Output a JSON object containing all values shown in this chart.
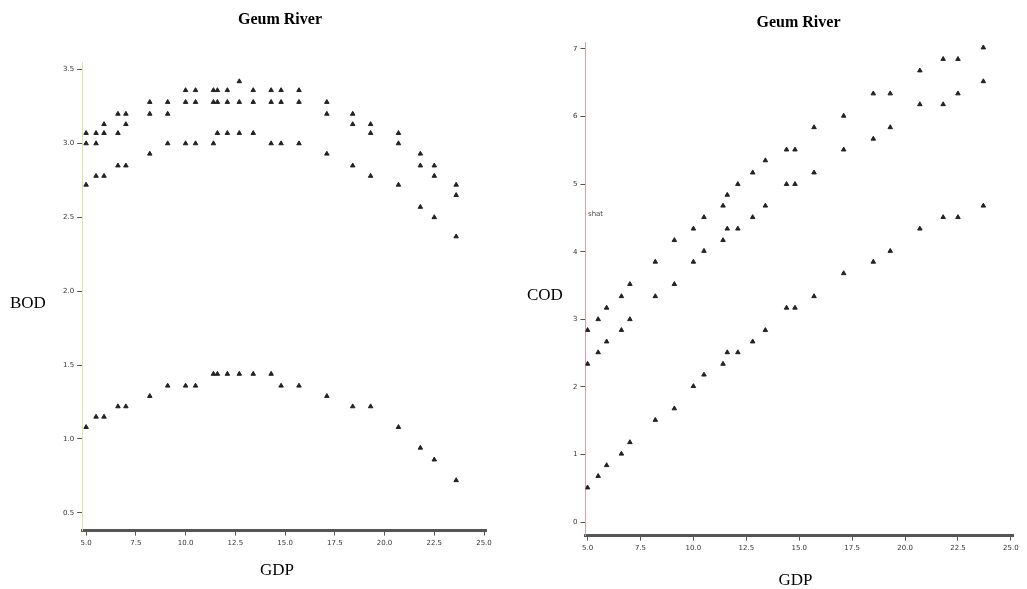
{
  "chart_data": [
    {
      "type": "scatter",
      "title": "Geum River",
      "xlabel": "GDP",
      "ylabel": "BOD",
      "marker": "triangle",
      "grid": false,
      "legend": false,
      "xlim": [
        4.8,
        25.1
      ],
      "ylim": [
        0.38,
        3.55
      ],
      "xticks": [
        {
          "value": 5,
          "label": "5.0"
        },
        {
          "value": 7.5,
          "label": "7.5"
        },
        {
          "value": 10,
          "label": "10.0"
        },
        {
          "value": 12.5,
          "label": "12.5"
        },
        {
          "value": 15,
          "label": "15.0"
        },
        {
          "value": 17.5,
          "label": "17.5"
        },
        {
          "value": 20,
          "label": "20.0"
        },
        {
          "value": 22.5,
          "label": "22.5"
        },
        {
          "value": 25,
          "label": "25.0"
        }
      ],
      "yticks": [
        {
          "value": 0.5,
          "label": "0.5"
        },
        {
          "value": 1,
          "label": "1.0"
        },
        {
          "value": 1.5,
          "label": "1.5"
        },
        {
          "value": 2,
          "label": "2.0"
        },
        {
          "value": 2.5,
          "label": "2.5"
        },
        {
          "value": 3,
          "label": "3.0"
        },
        {
          "value": 3.5,
          "label": "3.5"
        }
      ],
      "series": [
        {
          "color": "#222222",
          "x": [
            5.0,
            5.0,
            5.0,
            5.5,
            5.5,
            5.5,
            5.9,
            5.9,
            5.9,
            6.6,
            6.6,
            6.6,
            7.0,
            7.0,
            7.0,
            8.2,
            8.2,
            8.2,
            9.1,
            9.1,
            9.1,
            10.0,
            10.0,
            10.0,
            10.5,
            10.5,
            10.5,
            11.4,
            11.4,
            11.4,
            11.6,
            11.6,
            11.6,
            12.1,
            12.1,
            12.1,
            12.7,
            12.7,
            12.7,
            13.4,
            13.4,
            13.4,
            14.3,
            14.3,
            14.3,
            14.8,
            14.8,
            14.8,
            15.7,
            15.7,
            15.7,
            17.1,
            17.1,
            17.1,
            18.4,
            18.4,
            18.4,
            19.3,
            19.3,
            19.3,
            20.7,
            20.7,
            20.7,
            21.8,
            21.8,
            21.8,
            22.5,
            22.5,
            22.5,
            23.6,
            23.6,
            23.6,
            5.0,
            5.5,
            5.9,
            6.6,
            7.0,
            8.2,
            9.1,
            10.0,
            10.5,
            11.4,
            11.6,
            12.1,
            12.7,
            13.4,
            14.3,
            14.8,
            15.7,
            17.1,
            18.4,
            19.3,
            20.7,
            21.8,
            22.5,
            23.6
          ],
          "values": [
            3.07,
            3.0,
            2.72,
            3.07,
            3.0,
            2.78,
            3.13,
            3.07,
            2.78,
            3.2,
            3.07,
            2.85,
            3.2,
            3.13,
            2.85,
            3.28,
            3.2,
            2.93,
            3.28,
            3.2,
            3.0,
            3.36,
            3.28,
            3.0,
            3.36,
            3.28,
            3.0,
            3.36,
            3.28,
            3.0,
            3.36,
            3.28,
            3.07,
            3.36,
            3.28,
            3.07,
            3.42,
            3.28,
            3.07,
            3.36,
            3.28,
            3.07,
            3.36,
            3.28,
            3.0,
            3.36,
            3.28,
            3.0,
            3.36,
            3.28,
            3.0,
            3.28,
            3.2,
            2.93,
            3.2,
            3.13,
            2.85,
            3.13,
            3.07,
            2.78,
            3.07,
            3.0,
            2.72,
            2.93,
            2.85,
            2.57,
            2.85,
            2.78,
            2.5,
            2.72,
            2.65,
            2.37,
            1.08,
            1.15,
            1.15,
            1.22,
            1.22,
            1.29,
            1.36,
            1.36,
            1.36,
            1.44,
            1.44,
            1.44,
            1.44,
            1.44,
            1.44,
            1.36,
            1.36,
            1.29,
            1.22,
            1.22,
            1.08,
            0.94,
            0.86,
            0.72
          ]
        }
      ]
    },
    {
      "type": "scatter",
      "title": "Geum River",
      "xlabel": "GDP",
      "ylabel": "COD",
      "marker": "triangle",
      "grid": false,
      "legend": false,
      "annotations": [
        "shat"
      ],
      "xlim": [
        4.9,
        25.1
      ],
      "ylim": [
        -0.2,
        7.1
      ],
      "xticks": [
        {
          "value": 5,
          "label": "5.0"
        },
        {
          "value": 7.5,
          "label": "7.5"
        },
        {
          "value": 10,
          "label": "10.0"
        },
        {
          "value": 12.5,
          "label": "12.5"
        },
        {
          "value": 15,
          "label": "15.0"
        },
        {
          "value": 17.5,
          "label": "17.5"
        },
        {
          "value": 20,
          "label": "20.0"
        },
        {
          "value": 22.5,
          "label": "22.5"
        },
        {
          "value": 25,
          "label": "25.0"
        }
      ],
      "yticks": [
        0,
        1,
        2,
        3,
        4,
        5,
        6,
        7
      ],
      "series": [
        {
          "color": "#222222",
          "x": [
            5.0,
            5.0,
            5.0,
            5.5,
            5.5,
            5.5,
            5.9,
            5.9,
            5.9,
            6.6,
            6.6,
            6.6,
            7.0,
            7.0,
            7.0,
            8.2,
            8.2,
            8.2,
            9.1,
            9.1,
            9.1,
            10.0,
            10.0,
            10.0,
            10.5,
            10.5,
            10.5,
            11.4,
            11.4,
            11.4,
            11.6,
            11.6,
            11.6,
            12.1,
            12.1,
            12.1,
            12.8,
            12.8,
            12.8,
            13.4,
            13.4,
            13.4,
            14.4,
            14.4,
            14.4,
            14.8,
            14.8,
            14.8,
            15.7,
            15.7,
            15.7,
            17.1,
            17.1,
            17.1,
            18.5,
            18.5,
            18.5,
            19.3,
            19.3,
            19.3,
            20.7,
            20.7,
            20.7,
            21.8,
            21.8,
            21.8,
            22.5,
            22.5,
            22.5,
            23.7,
            23.7,
            23.7
          ],
          "values": [
            2.84,
            2.34,
            0.51,
            3.0,
            2.51,
            0.68,
            3.17,
            2.67,
            0.84,
            3.34,
            2.84,
            1.01,
            3.52,
            3.0,
            1.18,
            3.85,
            3.34,
            1.51,
            4.17,
            3.52,
            1.68,
            4.34,
            3.85,
            2.01,
            4.51,
            4.01,
            2.18,
            4.68,
            4.17,
            2.34,
            4.84,
            4.34,
            2.51,
            5.0,
            4.34,
            2.51,
            5.17,
            4.51,
            2.67,
            5.35,
            4.68,
            2.84,
            5.51,
            5.0,
            3.17,
            5.51,
            5.0,
            3.17,
            5.84,
            5.17,
            3.34,
            6.01,
            5.51,
            3.68,
            6.34,
            5.67,
            3.85,
            6.34,
            5.84,
            4.01,
            6.68,
            6.18,
            4.34,
            6.85,
            6.18,
            4.51,
            6.85,
            6.34,
            4.51,
            7.02,
            6.52,
            4.68
          ]
        }
      ]
    }
  ]
}
